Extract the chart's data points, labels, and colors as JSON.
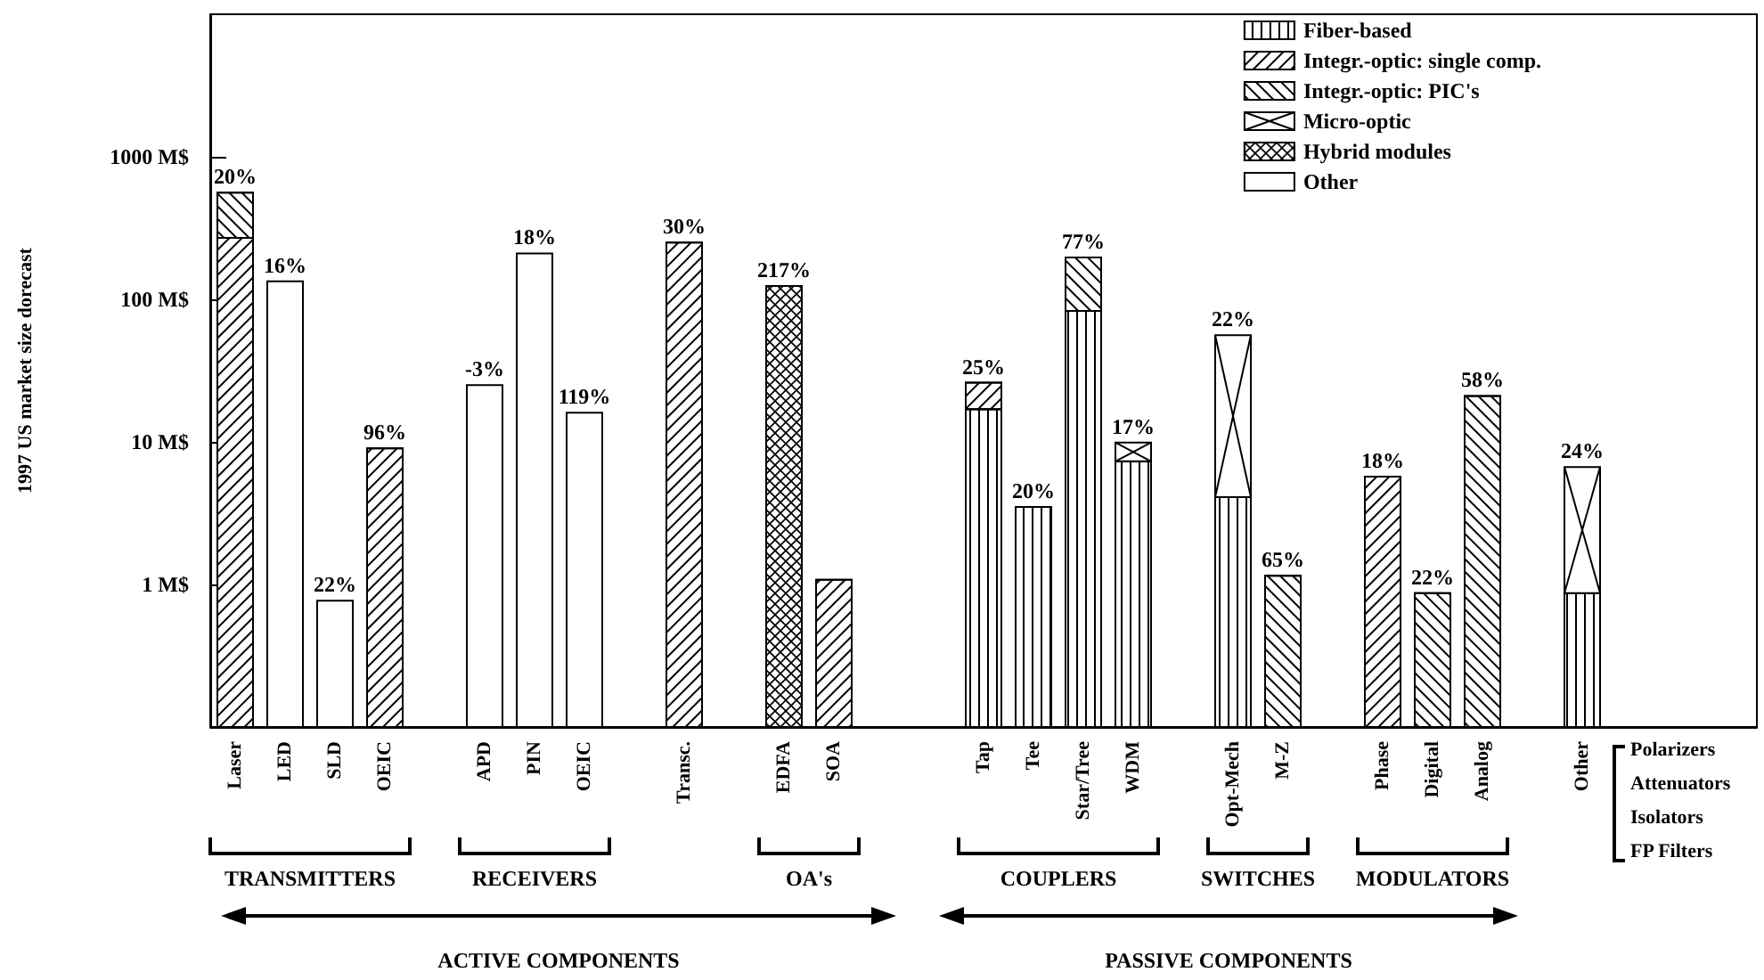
{
  "chart_data": {
    "type": "bar",
    "stacked": true,
    "log": "y",
    "ylabel": "1997 US market size dorecast",
    "categories": [
      "Laser",
      "LED",
      "SLD",
      "OEIC",
      null,
      "APD",
      "PIN",
      "OEIC",
      null,
      "Transc.",
      null,
      "EDFA",
      "SOA",
      null,
      null,
      "Tap",
      "Tee",
      "Star/Tree",
      "WDM",
      null,
      "Opt-Mech",
      "M-Z",
      null,
      "Phase",
      "Digital",
      "Analog",
      null,
      "Other",
      null,
      null,
      null
    ],
    "series": [
      {
        "name": "Fiber-based",
        "color": "#000000",
        "values": [
          null,
          null,
          null,
          null,
          null,
          null,
          null,
          null,
          null,
          null,
          null,
          null,
          null,
          null,
          null,
          17,
          3.5,
          83,
          7.3,
          null,
          4.1,
          null,
          null,
          null,
          null,
          null,
          null,
          0.87,
          null,
          null,
          null
        ]
      },
      {
        "name": "Integr.-optic: single comp.",
        "color": "#000000",
        "values": [
          270,
          null,
          null,
          9,
          null,
          null,
          null,
          null,
          null,
          250,
          null,
          null,
          1.08,
          null,
          null,
          9,
          null,
          null,
          null,
          null,
          null,
          null,
          null,
          5.7,
          null,
          null,
          null,
          null,
          null,
          null,
          null
        ]
      },
      {
        "name": "Integr.-optic: PIC's",
        "color": "#000000",
        "values": [
          290,
          null,
          null,
          null,
          null,
          null,
          null,
          null,
          null,
          null,
          null,
          null,
          null,
          null,
          null,
          null,
          null,
          114,
          null,
          null,
          null,
          1.15,
          null,
          null,
          0.87,
          21,
          null,
          null,
          null,
          null,
          null
        ]
      },
      {
        "name": "Micro-optic",
        "color": "#000000",
        "values": [
          null,
          null,
          null,
          null,
          null,
          null,
          null,
          null,
          null,
          null,
          null,
          null,
          null,
          null,
          null,
          null,
          null,
          null,
          2.6,
          null,
          52,
          null,
          null,
          null,
          null,
          null,
          null,
          5.8,
          null,
          null,
          null
        ]
      },
      {
        "name": "Hybrid modules",
        "color": "#000000",
        "values": [
          null,
          null,
          null,
          null,
          null,
          null,
          null,
          null,
          null,
          null,
          null,
          124,
          null,
          null,
          null,
          null,
          null,
          null,
          null,
          null,
          null,
          null,
          null,
          null,
          null,
          null,
          null,
          null,
          null,
          null,
          null
        ]
      },
      {
        "name": "Other",
        "color": "#000000",
        "values": [
          null,
          134,
          0.77,
          null,
          null,
          25,
          210,
          16,
          null,
          null,
          null,
          null,
          null,
          null,
          null,
          null,
          null,
          null,
          null,
          null,
          null,
          null,
          null,
          null,
          null,
          null,
          null,
          null,
          null,
          null,
          null
        ]
      }
    ],
    "ylim": [
      0.1,
      10000
    ],
    "yticks": [
      {
        "value": 1,
        "label": "1 M$"
      },
      {
        "value": 10,
        "label": "10 M$"
      },
      {
        "value": 100,
        "label": "100 M$"
      },
      {
        "value": 1000,
        "label": "1000 M$"
      }
    ],
    "grid": false,
    "legend": "top right",
    "annotations": [
      {
        "text": "20%",
        "x": "Laser",
        "y": 560
      },
      {
        "text": "16%",
        "x": "LED",
        "y": 134
      },
      {
        "text": "22%",
        "x": "SLD",
        "y": 0.77
      },
      {
        "text": "96%",
        "x": "OEIC",
        "y": 9
      },
      {
        "text": "-3%",
        "x": "APD",
        "y": 25
      },
      {
        "text": "18%",
        "x": "PIN",
        "y": 210
      },
      {
        "text": "30%",
        "x": "Transc.",
        "y": 250
      },
      {
        "text": "217%",
        "x": "EDFA",
        "y": 124
      },
      {
        "text": "25%",
        "x": "Tap",
        "y": 26
      },
      {
        "text": "20%",
        "x": "Tee",
        "y": 3.5
      },
      {
        "text": "77%",
        "x": "Star/Tree",
        "y": 197
      },
      {
        "text": "17%",
        "x": "WDM",
        "y": 9.9
      },
      {
        "text": "22%",
        "x": "Opt-Mech",
        "y": 56
      },
      {
        "text": "65%",
        "x": "M-Z",
        "y": 1.15
      },
      {
        "text": "18%",
        "x": "Phase",
        "y": 5.7
      },
      {
        "text": "22%",
        "x": "Digital",
        "y": 0.87
      },
      {
        "text": "58%",
        "x": "Analog",
        "y": 21
      },
      {
        "text": "24%",
        "x": "Other",
        "y": 6.7
      },
      "TRANSMITTERS",
      "RECEIVERS",
      "OA's",
      "COUPLERS",
      "SWITCHES",
      "MODULATORS",
      "ACTIVE COMPONENTS",
      "PASSIVE COMPONENTS",
      "Polarizers",
      "Attenuators",
      "Isolators",
      "FP Filters",
      "119%"
    ]
  }
}
